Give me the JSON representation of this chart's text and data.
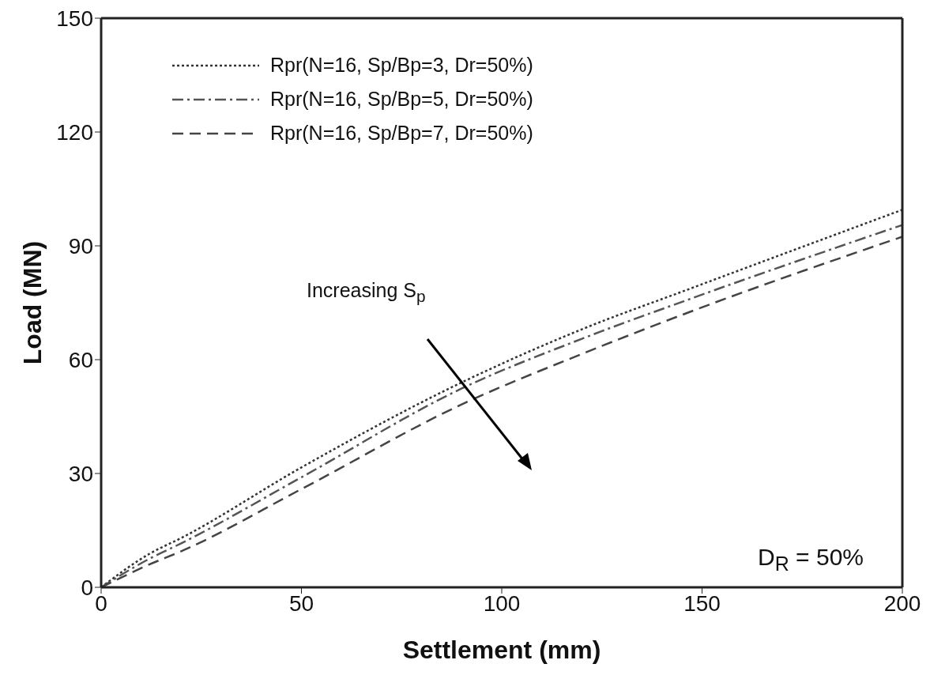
{
  "chart_data": {
    "type": "line",
    "xlabel": "Settlement (mm)",
    "ylabel": "Load (MN)",
    "x": [
      0,
      12,
      20,
      50,
      90,
      120,
      147,
      200
    ],
    "series": [
      {
        "name": "Rpr(N=16, Sp/Bp=3, Dr=50%)",
        "color": "#333333",
        "line_style": "dotted",
        "values": [
          0,
          8.8,
          13,
          31.6,
          54,
          68,
          78.7,
          99.5
        ]
      },
      {
        "name": "Rpr(N=16, Sp/Bp=5, Dr=50%)",
        "color": "#555555",
        "line_style": "dashdot",
        "values": [
          0,
          7.5,
          11.6,
          29,
          52.4,
          65.5,
          76,
          95.5
        ]
      },
      {
        "name": "Rpr(N=16, Sp/Bp=7, Dr=50%)",
        "color": "#444444",
        "line_style": "dashed",
        "values": [
          0,
          6,
          9.5,
          25.9,
          48.2,
          61.5,
          72.6,
          92.4
        ]
      }
    ],
    "xlim": [
      0,
      200
    ],
    "xticks": [
      0,
      50,
      100,
      150,
      200
    ],
    "ylim": [
      0,
      150
    ],
    "yticks": [
      0,
      30,
      60,
      90,
      120,
      150
    ],
    "grid": false,
    "legend": "top left",
    "marker": "none",
    "annotations": [
      "Increasing S$_{p}$",
      "D$_{R}$ = 50%"
    ]
  }
}
